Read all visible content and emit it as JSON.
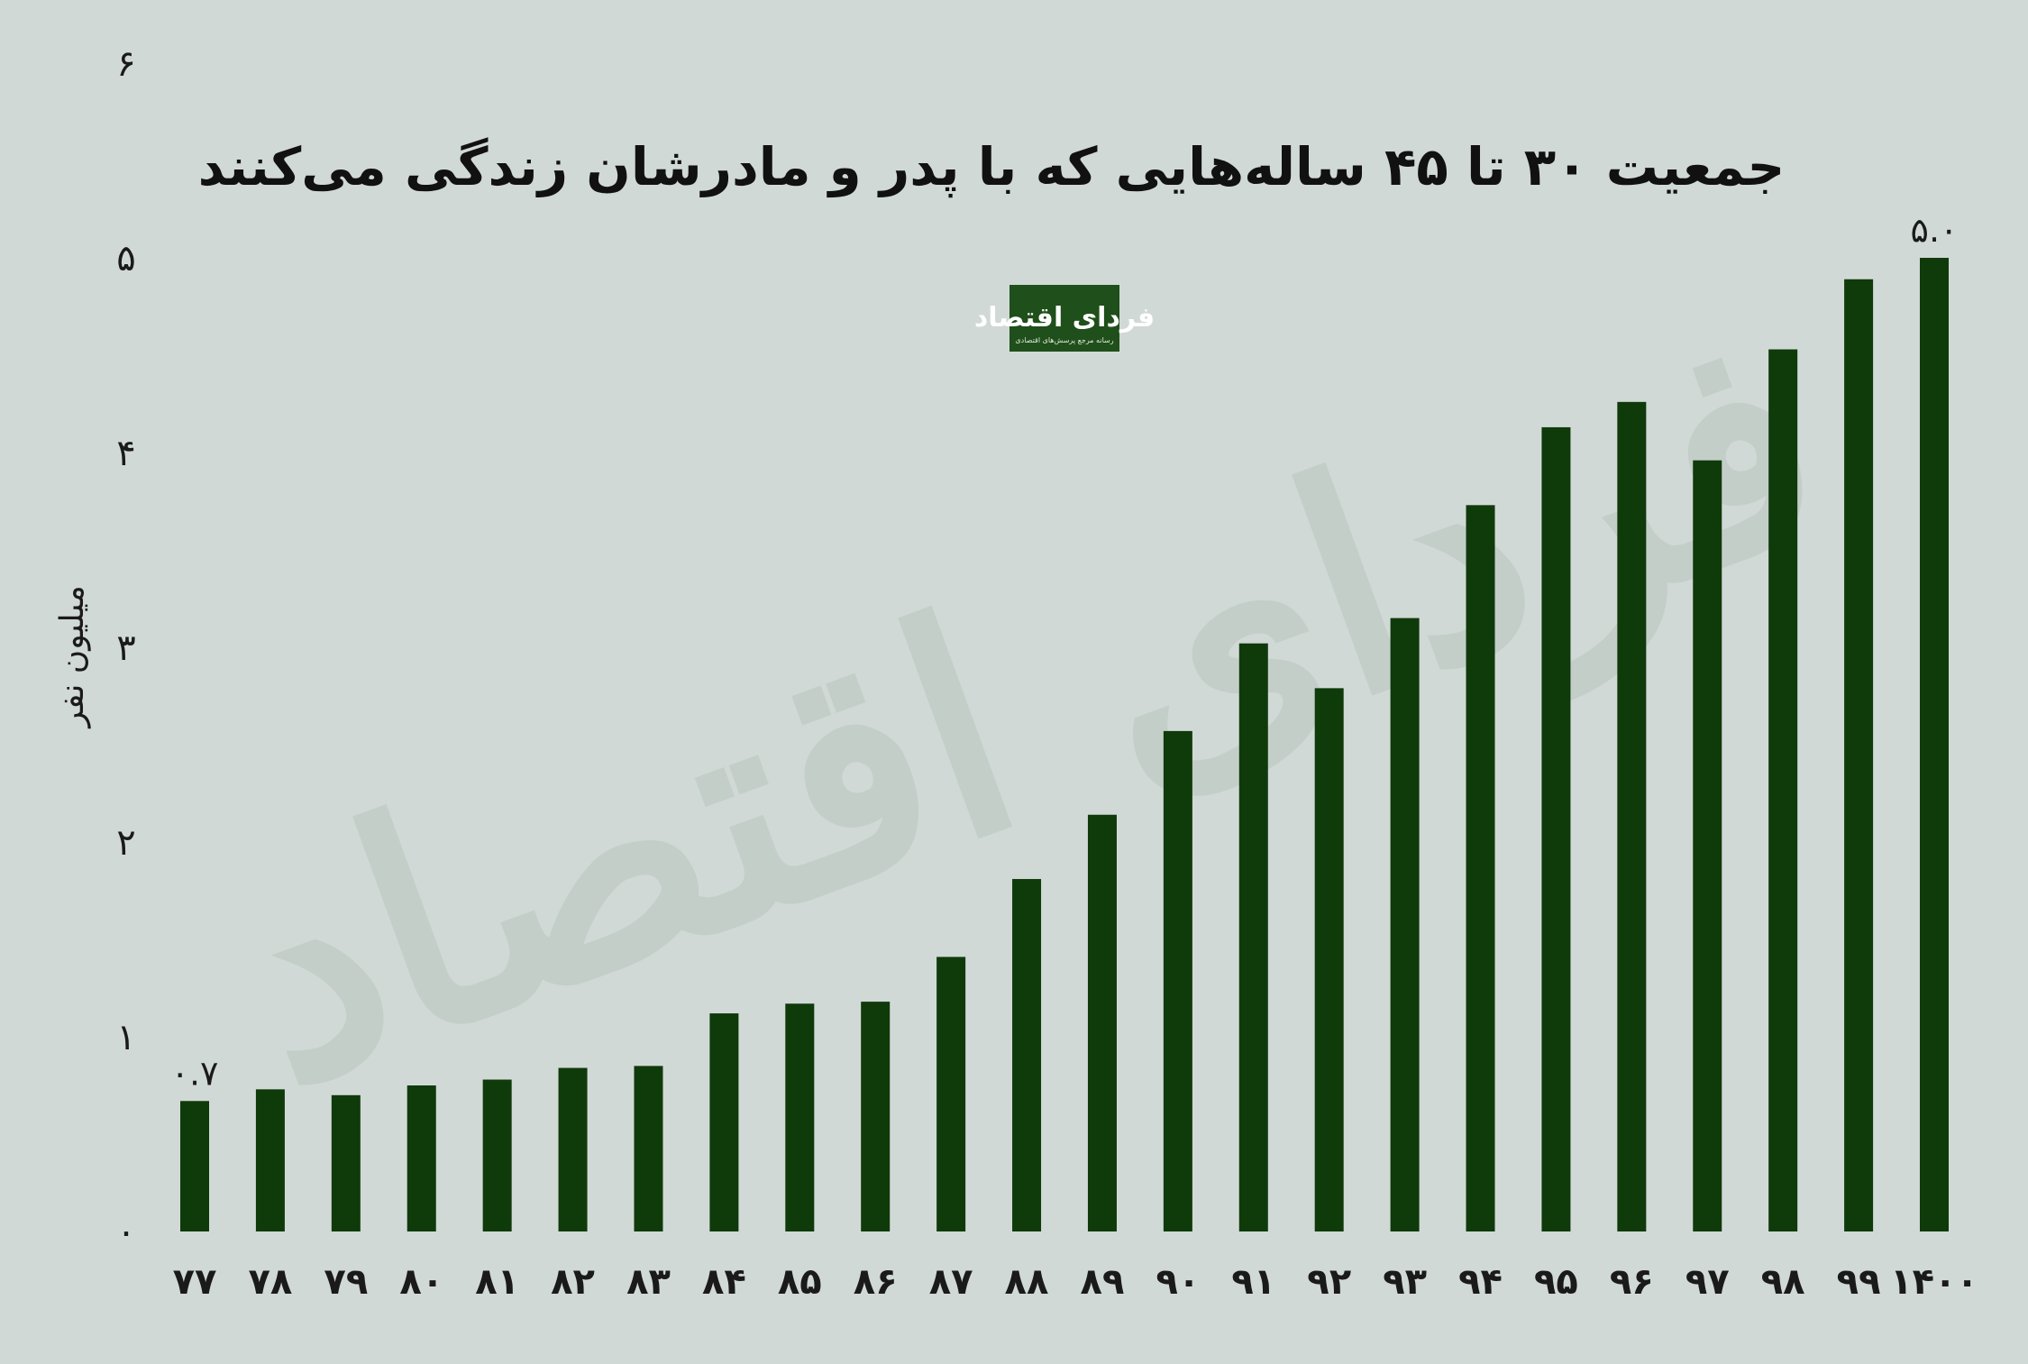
{
  "title": "جمعیت ۳۰ تا ۴۵ ساله‌هایی که با پدر و مادرشان زندگی می‌کنند",
  "watermark": "فردای اقتصاد",
  "logo": {
    "name": "فردای اقتصاد",
    "tagline": "رسانه مرجع پرسش‌های اقتصادی"
  },
  "colors": {
    "background": "#d1d9d7",
    "bar": "#0f3a0a",
    "logo_bg": "#1f4f1a"
  },
  "chart_data": {
    "type": "bar",
    "title": "جمعیت ۳۰ تا ۴۵ ساله‌هایی که با پدر و مادرشان زندگی می‌کنند",
    "xlabel": "",
    "ylabel": "میلیون نفر",
    "ylim": [
      0,
      6
    ],
    "yticks": [
      0,
      1,
      2,
      3,
      4,
      5,
      6
    ],
    "ytick_labels": [
      "۰",
      "۱",
      "۲",
      "۳",
      "۴",
      "۵",
      "۶"
    ],
    "grid": false,
    "categories": [
      "۷۷",
      "۷۸",
      "۷۹",
      "۸۰",
      "۸۱",
      "۸۲",
      "۸۳",
      "۸۴",
      "۸۵",
      "۸۶",
      "۸۷",
      "۸۸",
      "۸۹",
      "۹۰",
      "۹۱",
      "۹۲",
      "۹۳",
      "۹۴",
      "۹۵",
      "۹۶",
      "۹۷",
      "۹۸",
      "۹۹",
      "۱۴۰۰"
    ],
    "values": [
      0.67,
      0.73,
      0.7,
      0.75,
      0.78,
      0.84,
      0.85,
      1.12,
      1.17,
      1.18,
      1.41,
      1.81,
      2.14,
      2.57,
      3.02,
      2.79,
      3.15,
      3.73,
      4.13,
      4.26,
      3.96,
      4.53,
      4.89,
      5.0
    ],
    "data_labels": [
      {
        "index": 0,
        "text": "۰.۷"
      },
      {
        "index": 23,
        "text": "۵.۰"
      }
    ]
  }
}
